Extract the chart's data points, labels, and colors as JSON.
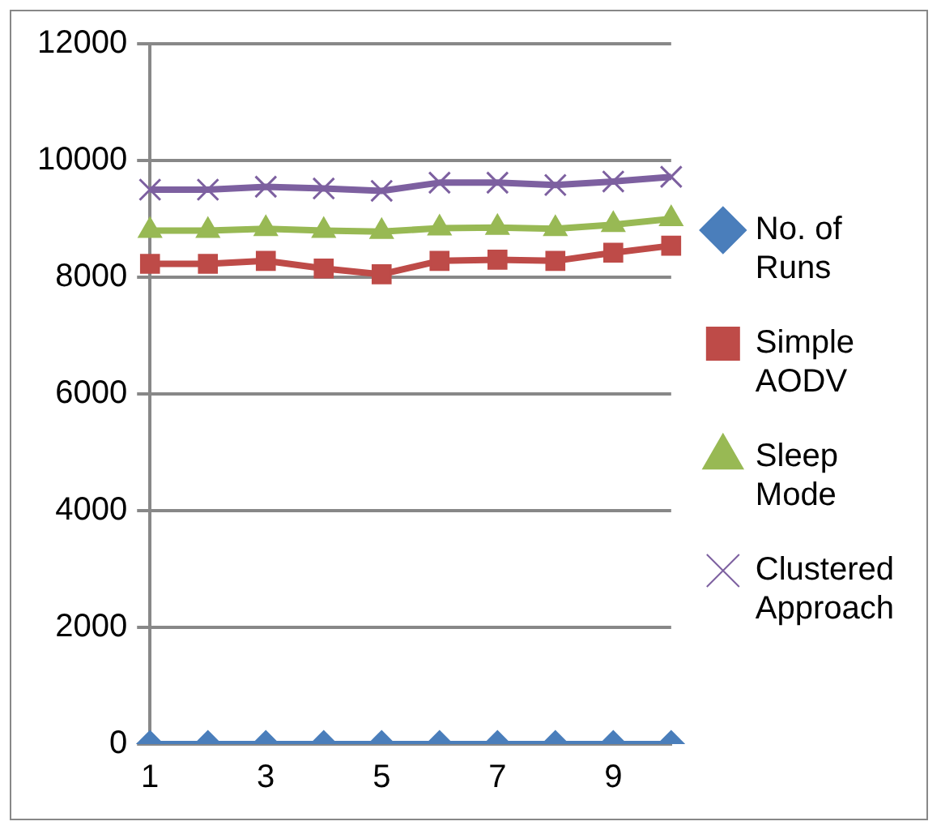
{
  "chart_data": {
    "type": "line",
    "categories": [
      "1",
      null,
      "3",
      null,
      "5",
      null,
      "7",
      null,
      "9",
      null
    ],
    "ylim": [
      0,
      12000
    ],
    "yticks": [
      0,
      2000,
      4000,
      6000,
      8000,
      10000,
      12000
    ],
    "grid": "y",
    "legend": "right",
    "series": [
      {
        "name": "No. of Runs",
        "color": "#4a7ebb",
        "marker": "diamond",
        "values": [
          0,
          0,
          0,
          0,
          0,
          0,
          0,
          0,
          0,
          0
        ]
      },
      {
        "name": "Simple AODV",
        "color": "#be4b48",
        "marker": "square",
        "values": [
          8230,
          8230,
          8280,
          8150,
          8050,
          8280,
          8300,
          8280,
          8420,
          8540
        ]
      },
      {
        "name": "Sleep Mode",
        "color": "#98b954",
        "marker": "triangle",
        "values": [
          8800,
          8800,
          8830,
          8800,
          8780,
          8840,
          8850,
          8830,
          8900,
          9000
        ]
      },
      {
        "name": "Clustered Approach",
        "color": "#7d60a0",
        "marker": "cross",
        "values": [
          9500,
          9500,
          9550,
          9520,
          9480,
          9620,
          9620,
          9580,
          9640,
          9720
        ]
      }
    ]
  }
}
